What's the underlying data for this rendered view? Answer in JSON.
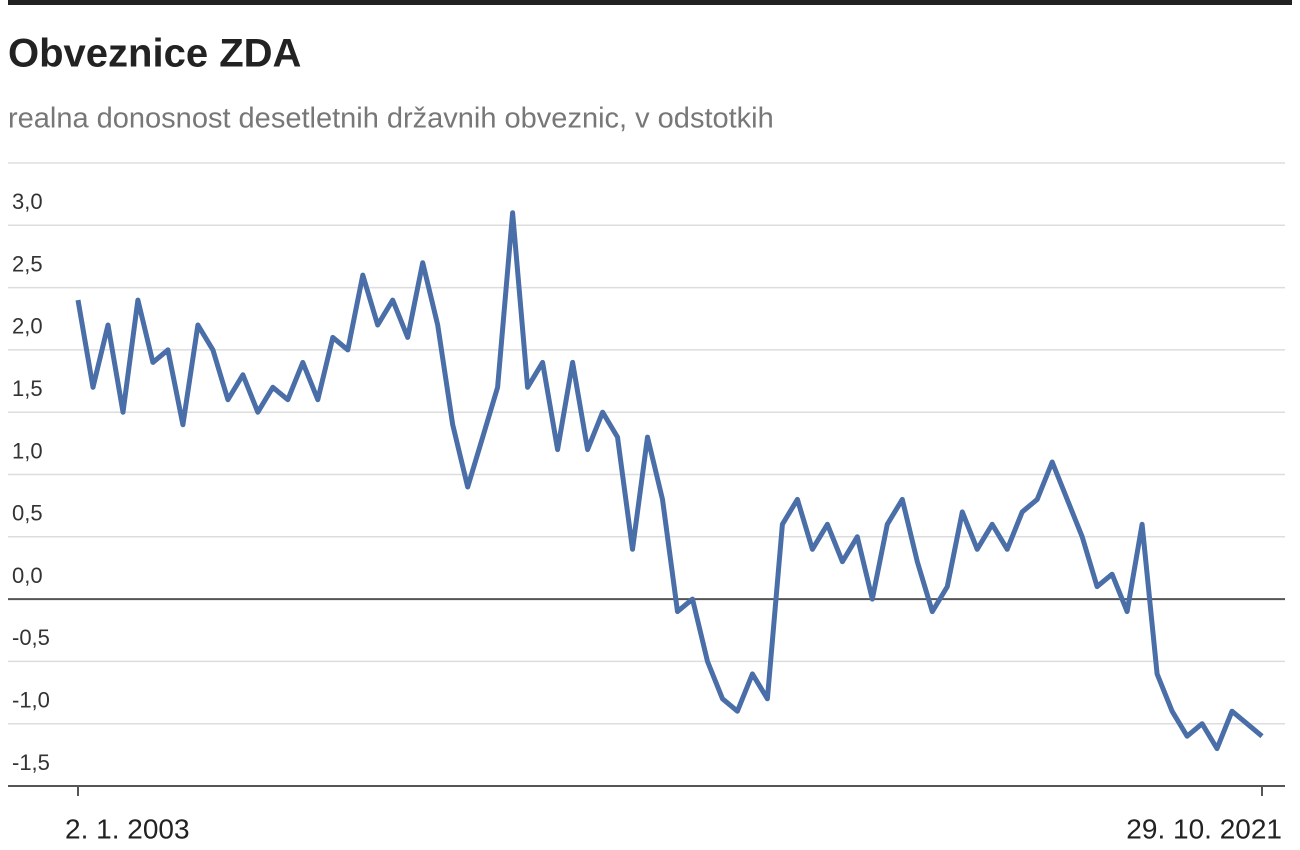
{
  "chart_data": {
    "type": "line",
    "title": "Obveznice ZDA",
    "subtitle": "realna donosnost desetletnih državnih obveznic, v odstotkih",
    "categories": [
      "2. 1. 2003",
      null,
      null,
      null,
      null,
      null,
      null,
      null,
      null,
      null,
      null,
      null,
      null,
      null,
      null,
      null,
      null,
      null,
      null,
      null,
      null,
      null,
      null,
      null,
      null,
      null,
      null,
      null,
      null,
      null,
      null,
      null,
      null,
      null,
      null,
      null,
      null,
      null,
      null,
      null,
      null,
      null,
      null,
      null,
      null,
      null,
      null,
      null,
      null,
      null,
      null,
      null,
      null,
      null,
      null,
      null,
      null,
      null,
      null,
      null,
      null,
      null,
      null,
      null,
      null,
      null,
      null,
      null,
      null,
      null,
      null,
      null,
      null,
      null,
      null,
      null,
      null,
      null,
      null,
      "29. 10. 2021"
    ],
    "values": [
      2.4,
      1.7,
      2.2,
      1.5,
      2.4,
      1.9,
      2.0,
      1.4,
      2.2,
      2.0,
      1.6,
      1.8,
      1.5,
      1.7,
      1.6,
      1.9,
      1.6,
      2.1,
      2.0,
      2.6,
      2.2,
      2.4,
      2.1,
      2.7,
      2.2,
      1.4,
      0.9,
      1.3,
      1.7,
      3.1,
      1.7,
      1.9,
      1.2,
      1.9,
      1.2,
      1.5,
      1.3,
      0.4,
      1.3,
      0.8,
      -0.1,
      0.0,
      -0.5,
      -0.8,
      -0.9,
      -0.6,
      -0.8,
      0.6,
      0.8,
      0.4,
      0.6,
      0.3,
      0.5,
      0.0,
      0.6,
      0.8,
      0.3,
      -0.1,
      0.1,
      0.7,
      0.4,
      0.6,
      0.4,
      0.7,
      0.8,
      1.1,
      0.8,
      0.5,
      0.1,
      0.2,
      -0.1,
      0.6,
      -0.6,
      -0.9,
      -1.1,
      -1.0,
      -1.2,
      -0.9,
      -1.0,
      -1.1
    ],
    "color": "#4a6ea8",
    "ylim": [
      -1.5,
      3.5
    ],
    "yticks": [
      {
        "value": -1.5,
        "label": "-1,5"
      },
      {
        "value": -1,
        "label": "-1,0"
      },
      {
        "value": -0.5,
        "label": "-0,5"
      },
      {
        "value": 0,
        "label": "0,0"
      },
      {
        "value": 0.5,
        "label": "0,5"
      },
      {
        "value": 1,
        "label": "1,0"
      },
      {
        "value": 1.5,
        "label": "1,5"
      },
      {
        "value": 2,
        "label": "2,0"
      },
      {
        "value": 2.5,
        "label": "2,5"
      },
      {
        "value": 3,
        "label": "3,0"
      }
    ],
    "grid": true
  }
}
